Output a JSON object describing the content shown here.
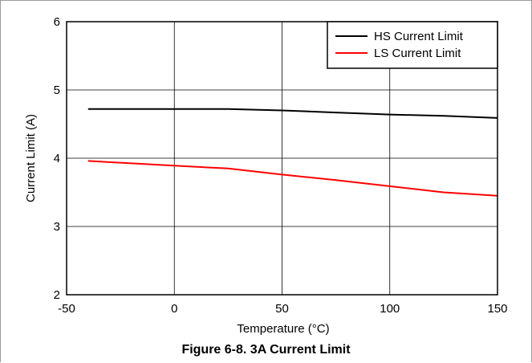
{
  "chart_data": {
    "type": "line",
    "title": "",
    "xlabel": "Temperature (°C)",
    "ylabel": "Current Limit (A)",
    "xlim": [
      -50,
      150
    ],
    "ylim": [
      2,
      6
    ],
    "xticks": [
      -50,
      0,
      50,
      100,
      150
    ],
    "yticks": [
      2,
      3,
      4,
      5,
      6
    ],
    "grid": true,
    "legend_position": "top-right",
    "series": [
      {
        "name": "HS Current Limit",
        "color": "#000000",
        "x": [
          -40,
          0,
          25,
          50,
          75,
          100,
          125,
          150
        ],
        "y": [
          4.72,
          4.72,
          4.72,
          4.7,
          4.67,
          4.64,
          4.62,
          4.59
        ]
      },
      {
        "name": "LS Current Limit",
        "color": "#ff0000",
        "x": [
          -40,
          0,
          25,
          50,
          75,
          100,
          125,
          150
        ],
        "y": [
          3.96,
          3.89,
          3.85,
          3.76,
          3.68,
          3.59,
          3.5,
          3.45
        ]
      }
    ]
  },
  "figure": {
    "caption": "Figure 6-8. 3A Current Limit"
  }
}
